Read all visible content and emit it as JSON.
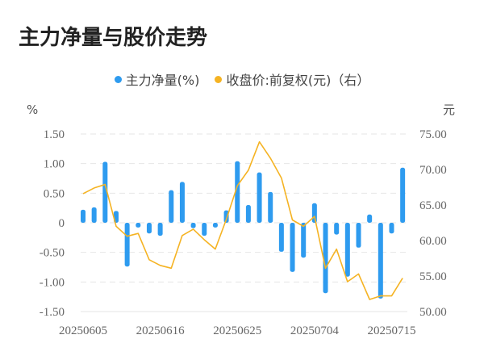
{
  "title": "主力净量与股价走势",
  "legend": [
    {
      "label": "主力净量(%)",
      "color": "#2E9BEF"
    },
    {
      "label": "收盘价:前复权(元)（右）",
      "color": "#F5B323"
    }
  ],
  "colors": {
    "bar": "#2E9BEF",
    "line": "#F5B323",
    "grid": "#E6E6E6",
    "axis_text": "#666666"
  },
  "chart_data": {
    "type": "bar+line",
    "title": "主力净量与股价走势",
    "xlabel": "",
    "ylabel_left": "%",
    "ylabel_right": "元",
    "ylim_left": [
      -1.5,
      1.5
    ],
    "ylim_right": [
      50,
      75
    ],
    "yticks_left": [
      "1.50",
      "1.00",
      "0.50",
      "0",
      "-0.50",
      "-1.00",
      "-1.50"
    ],
    "yticks_right": [
      "75.00",
      "70.00",
      "65.00",
      "60.00",
      "55.00",
      "50.00"
    ],
    "x_tick_labels": [
      {
        "index": 0,
        "label": "20250605"
      },
      {
        "index": 7,
        "label": "20250616"
      },
      {
        "index": 14,
        "label": "20250625"
      },
      {
        "index": 21,
        "label": "20250704"
      },
      {
        "index": 28,
        "label": "20250715"
      }
    ],
    "grid": true,
    "legend_position": "top",
    "categories": [
      "20250605",
      "20250606",
      "20250609",
      "20250610",
      "20250611",
      "20250612",
      "20250613",
      "20250616",
      "20250617",
      "20250618",
      "20250619",
      "20250620",
      "20250623",
      "20250624",
      "20250625",
      "20250626",
      "20250627",
      "20250630",
      "20250701",
      "20250702",
      "20250703",
      "20250704",
      "20250707",
      "20250708",
      "20250709",
      "20250710",
      "20250711",
      "20250714",
      "20250715",
      "20250716"
    ],
    "series": [
      {
        "name": "主力净量(%)",
        "type": "bar",
        "axis": "left",
        "values": [
          0.22,
          0.26,
          1.03,
          0.2,
          -0.74,
          -0.08,
          -0.18,
          -0.22,
          0.55,
          0.69,
          -0.09,
          -0.22,
          -0.08,
          0.21,
          1.04,
          0.3,
          0.85,
          0.52,
          -0.49,
          -0.83,
          -0.59,
          0.33,
          -1.19,
          -0.2,
          -0.91,
          -0.42,
          0.14,
          -1.28,
          -0.18,
          0.93
        ]
      },
      {
        "name": "收盘价:前复权(元)",
        "type": "line",
        "axis": "right",
        "values": [
          66.6,
          67.4,
          67.9,
          62.0,
          60.6,
          61.0,
          57.3,
          56.5,
          56.1,
          60.7,
          61.6,
          60.1,
          58.8,
          63.0,
          67.7,
          69.9,
          73.9,
          71.6,
          68.8,
          62.9,
          62.0,
          63.4,
          56.1,
          58.8,
          54.2,
          55.3,
          51.7,
          52.2,
          52.2,
          54.7
        ]
      }
    ]
  }
}
